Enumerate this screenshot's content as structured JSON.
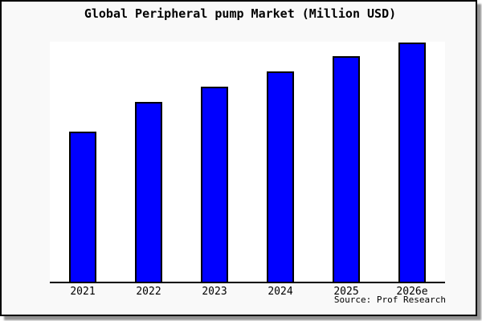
{
  "colors": {
    "bar_fill": "#0000FF",
    "bar_border": "#000000",
    "plot_bg": "#FFFFFF",
    "frame_bg": "#F9F9F9",
    "frame_border": "#000000",
    "shadow": "#6E6E6E"
  },
  "chart_data": {
    "type": "bar",
    "title": "Global Peripheral pump Market (Million USD)",
    "categories": [
      "2021",
      "2022",
      "2023",
      "2024",
      "2025",
      "2026e"
    ],
    "values": [
      62.8,
      75.2,
      81.5,
      87.9,
      94.3,
      100
    ],
    "value_scale": "relative height, percent of tallest bar (no numeric y-axis shown in chart)",
    "xlabel": "",
    "ylabel": "",
    "ylim": [
      0,
      100
    ],
    "grid": false,
    "legend": false,
    "source": "Source: Prof Research"
  }
}
